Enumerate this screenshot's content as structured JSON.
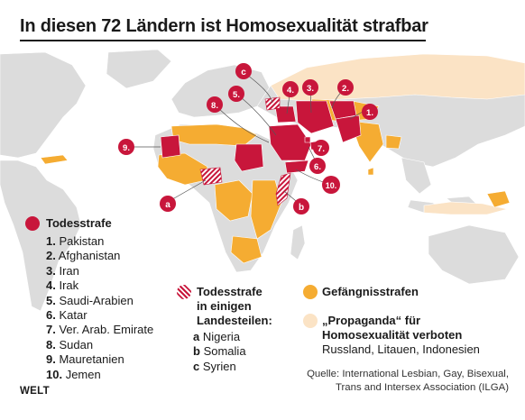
{
  "title": "In diesen 72 Ländern ist Homosexualität strafbar",
  "colors": {
    "death_penalty": "#c8163b",
    "prison": "#f5ac32",
    "propaganda": "#fbe3c5",
    "land": "#dcdcdc",
    "water": "#ffffff"
  },
  "map_labels": [
    "1.",
    "2.",
    "3.",
    "4.",
    "5.",
    "6.",
    "7.",
    "8.",
    "9.",
    "10.",
    "a",
    "b",
    "c"
  ],
  "legend": {
    "death": {
      "heading": "Todesstrafe",
      "items": [
        {
          "num": "1.",
          "name": "Pakistan"
        },
        {
          "num": "2.",
          "name": "Afghanistan"
        },
        {
          "num": "3.",
          "name": "Iran"
        },
        {
          "num": "4.",
          "name": "Irak"
        },
        {
          "num": "5.",
          "name": "Saudi-Arabien"
        },
        {
          "num": "6.",
          "name": "Katar"
        },
        {
          "num": "7.",
          "name": "Ver. Arab. Emirate"
        },
        {
          "num": "8.",
          "name": "Sudan"
        },
        {
          "num": "9.",
          "name": "Mauretanien"
        },
        {
          "num": "10.",
          "name": "Jemen"
        }
      ]
    },
    "partial": {
      "heading_line1": "Todesstrafe",
      "heading_line2": "in einigen",
      "heading_line3": "Landesteilen:",
      "items": [
        {
          "num": "a",
          "name": "Nigeria"
        },
        {
          "num": "b",
          "name": "Somalia"
        },
        {
          "num": "c",
          "name": "Syrien"
        }
      ]
    },
    "prison": {
      "heading": "Gefängnisstrafen"
    },
    "propaganda": {
      "heading_line1": "„Propaganda“ für",
      "heading_line2": "Homosexualität verboten",
      "countries": "Russland, Litauen, Indonesien"
    }
  },
  "source_line1": "Quelle: International Lesbian, Gay, Bisexual,",
  "source_line2": "Trans and Intersex Association (ILGA)",
  "brand": "WELT"
}
